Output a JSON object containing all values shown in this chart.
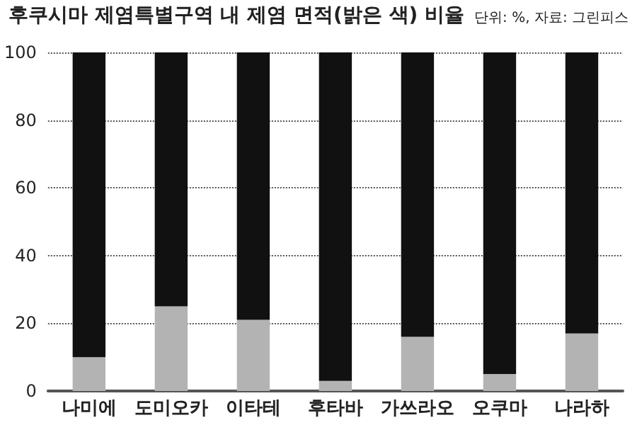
{
  "chart_data": {
    "type": "bar",
    "title": "후쿠시마 제염특별구역 내 제염 면적(밝은 색) 비율",
    "annotations": [
      "단위: %, 자료: 그린피스"
    ],
    "categories": [
      "나미에",
      "도미오카",
      "이타테",
      "후타바",
      "가쓰라오",
      "오쿠마",
      "나라하"
    ],
    "stacked": true,
    "series": [
      {
        "color": "#b3b3b3",
        "values": [
          10,
          25,
          21,
          3,
          16,
          5,
          17
        ]
      },
      {
        "color": "#111111",
        "values": [
          90,
          75,
          79,
          97,
          84,
          95,
          83
        ]
      }
    ],
    "ylim": [
      0,
      100
    ],
    "yticks": [
      0,
      20,
      40,
      60,
      80,
      100
    ],
    "grid": "y"
  }
}
